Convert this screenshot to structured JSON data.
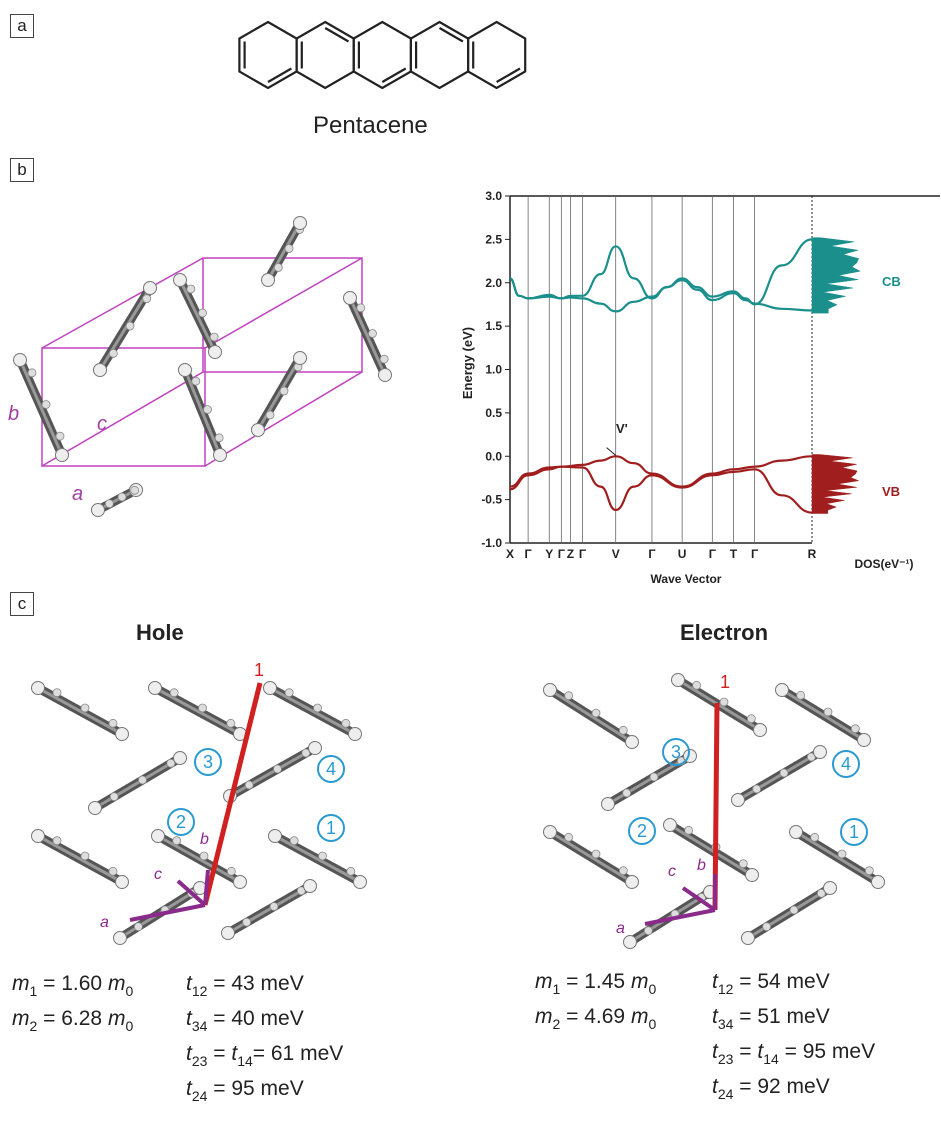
{
  "panels": {
    "a": "a",
    "b": "b",
    "c": "c"
  },
  "molecule_name": "Pentacene",
  "crystal_axes": {
    "a": "a",
    "b": "b",
    "c": "c"
  },
  "chart_data": {
    "type": "line",
    "ylabel": "Energy (eV)",
    "xlabel": "Wave Vector",
    "dos_label": "DOS(eV⁻¹)",
    "ylim": [
      -1.0,
      3.0
    ],
    "yticks": [
      "3.0",
      "2.5",
      "2.0",
      "1.5",
      "1.0",
      "0.5",
      "0.0",
      "-0.5",
      "-1.0"
    ],
    "ytick_values": [
      3.0,
      2.5,
      2.0,
      1.5,
      1.0,
      0.5,
      0.0,
      -0.5,
      -1.0
    ],
    "kpoint_labels": [
      "X",
      "Γ",
      "Y",
      "Γ",
      "Z",
      "Γ",
      "V",
      "Γ",
      "U",
      "Γ",
      "T",
      "Γ",
      "R"
    ],
    "kpoint_positions": [
      0,
      0.06,
      0.13,
      0.17,
      0.2,
      0.24,
      0.35,
      0.47,
      0.57,
      0.67,
      0.74,
      0.81,
      1.0
    ],
    "band_labels": {
      "cb": "CB",
      "vb": "VB"
    },
    "annotation": "V'",
    "colors": {
      "cb": "#1a8f8c",
      "vb": "#a01e1e"
    },
    "series": [
      {
        "band": "CB",
        "x": [
          0,
          0.03,
          0.06,
          0.13,
          0.17,
          0.2,
          0.24,
          0.3,
          0.35,
          0.41,
          0.47,
          0.52,
          0.57,
          0.62,
          0.67,
          0.74,
          0.78,
          0.81,
          0.9,
          1.0
        ],
        "values": [
          2.05,
          1.85,
          1.82,
          1.86,
          1.82,
          1.85,
          1.85,
          2.1,
          2.42,
          2.05,
          1.82,
          1.95,
          2.05,
          1.95,
          1.84,
          1.9,
          1.82,
          1.75,
          2.2,
          2.5
        ]
      },
      {
        "band": "CB",
        "x": [
          0,
          0.03,
          0.06,
          0.13,
          0.17,
          0.2,
          0.24,
          0.3,
          0.35,
          0.41,
          0.47,
          0.52,
          0.57,
          0.62,
          0.67,
          0.74,
          0.78,
          0.81,
          0.9,
          1.0
        ],
        "values": [
          2.05,
          1.85,
          1.82,
          1.84,
          1.82,
          1.83,
          1.82,
          1.76,
          1.67,
          1.78,
          1.84,
          1.95,
          2.03,
          1.92,
          1.8,
          1.88,
          1.8,
          1.76,
          1.7,
          1.68
        ]
      },
      {
        "band": "VB",
        "x": [
          0,
          0.06,
          0.13,
          0.17,
          0.24,
          0.3,
          0.35,
          0.41,
          0.47,
          0.57,
          0.67,
          0.74,
          0.81,
          0.9,
          1.0
        ],
        "values": [
          -0.35,
          -0.2,
          -0.13,
          -0.12,
          -0.1,
          -0.05,
          0.0,
          -0.08,
          -0.2,
          -0.35,
          -0.2,
          -0.15,
          -0.12,
          -0.05,
          0.0
        ]
      },
      {
        "band": "VB",
        "x": [
          0,
          0.06,
          0.13,
          0.17,
          0.24,
          0.3,
          0.35,
          0.41,
          0.47,
          0.57,
          0.67,
          0.74,
          0.81,
          0.9,
          1.0
        ],
        "values": [
          -0.38,
          -0.22,
          -0.15,
          -0.12,
          -0.13,
          -0.35,
          -0.62,
          -0.35,
          -0.22,
          -0.36,
          -0.22,
          -0.18,
          -0.15,
          -0.45,
          -0.65
        ]
      }
    ]
  },
  "transport": {
    "hole": {
      "title": "Hole",
      "axis_label": "1",
      "neighbors": [
        "3",
        "4",
        "2",
        "1"
      ],
      "axes": {
        "a": "a",
        "b": "b",
        "c": "c"
      },
      "m1": "m",
      "m1_sub": "1",
      "m1_val": " = 1.60 ",
      "m0": "m",
      "m0_sub": "0",
      "m2": "m",
      "m2_sub": "2",
      "m2_val": " = 6.28 ",
      "t": [
        {
          "t": "t",
          "sub": "12",
          "rest": " = 43 meV"
        },
        {
          "t": "t",
          "sub": "34",
          "rest": " = 40 meV"
        },
        {
          "t": "t",
          "sub": "23",
          "mid": " = ",
          "t2": "t",
          "sub2": "14",
          "rest": "= 61 meV"
        },
        {
          "t": "t",
          "sub": "24",
          "rest": " = 95 meV"
        }
      ]
    },
    "electron": {
      "title": "Electron",
      "axis_label": "1",
      "neighbors": [
        "3",
        "4",
        "2",
        "1"
      ],
      "axes": {
        "a": "a",
        "b": "b",
        "c": "c"
      },
      "m1": "m",
      "m1_sub": "1",
      "m1_val": " = 1.45 ",
      "m0": "m",
      "m0_sub": "0",
      "m2": "m",
      "m2_sub": "2",
      "m2_val": " = 4.69 ",
      "t": [
        {
          "t": "t",
          "sub": "12",
          "rest": " = 54 meV"
        },
        {
          "t": "t",
          "sub": "34",
          "rest": " = 51 meV"
        },
        {
          "t": "t",
          "sub": "23",
          "mid": " = ",
          "t2": "t",
          "sub2": "14",
          "rest": " = 95 meV"
        },
        {
          "t": "t",
          "sub": "24",
          "rest": " = 92 meV"
        }
      ]
    }
  }
}
